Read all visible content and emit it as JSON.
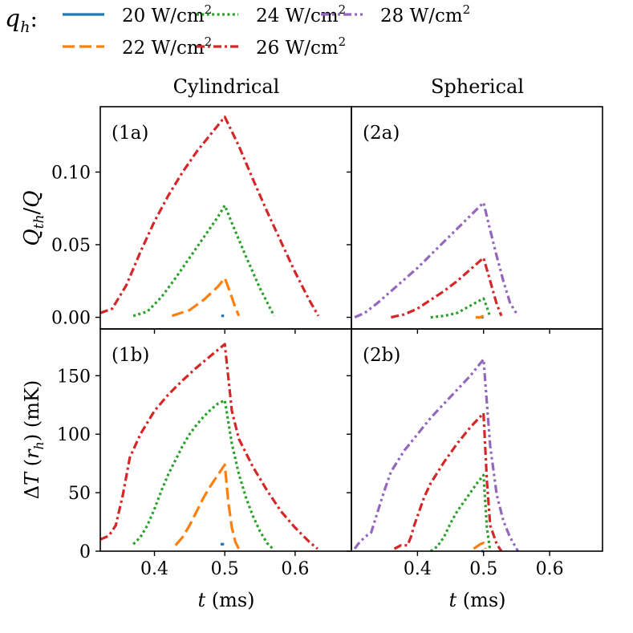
{
  "legend": {
    "prefix": "q_h:",
    "prefix_symbol": "q",
    "prefix_sub": "h",
    "unit_base": "W/cm",
    "unit_exp": "2",
    "entries": [
      {
        "key": "q20",
        "value": "20",
        "color": "#1f77b4",
        "style": "solid"
      },
      {
        "key": "q22",
        "value": "22",
        "color": "#ff7f0e",
        "style": "dashed"
      },
      {
        "key": "q24",
        "value": "24",
        "color": "#2ca02c",
        "style": "dotted"
      },
      {
        "key": "q26",
        "value": "26",
        "color": "#d62728",
        "style": "dashdot"
      },
      {
        "key": "q28",
        "value": "28",
        "color": "#9467bd",
        "style": "dashdotdot"
      }
    ]
  },
  "columns": {
    "left": "Cylindrical",
    "right": "Spherical"
  },
  "axes": {
    "xlabel": "t (ms)",
    "xlabel_symbol": "t",
    "xlabel_unit": "(ms)",
    "xticks": [
      "0.4",
      "0.5",
      "0.6"
    ],
    "top_ylabel": "Q_th/Q",
    "top_yticks": [
      "0.00",
      "0.05",
      "0.10"
    ],
    "bottom_ylabel": "ΔT(r_h) (mK)",
    "bottom_yticks": [
      "0",
      "50",
      "100",
      "150"
    ]
  },
  "chart_data": [
    {
      "id": "1a",
      "panel_label": "(1a)",
      "type": "line",
      "geometry": "Cylindrical",
      "xlim": [
        0.323,
        0.68
      ],
      "ylim": [
        -0.008,
        0.145
      ],
      "ylabel": "Q_th/Q",
      "xlabel": "t (ms)",
      "series": [
        {
          "name": "20 W/cm2",
          "key": "q20",
          "x": [
            0.495,
            0.499
          ],
          "y": [
            0.001,
            0.001
          ]
        },
        {
          "name": "22 W/cm2",
          "key": "q22",
          "x": [
            0.425,
            0.45,
            0.47,
            0.49,
            0.5,
            0.507,
            0.514,
            0.52
          ],
          "y": [
            0.001,
            0.005,
            0.012,
            0.021,
            0.027,
            0.018,
            0.008,
            0.001
          ]
        },
        {
          "name": "24 W/cm2",
          "key": "q24",
          "x": [
            0.37,
            0.39,
            0.41,
            0.43,
            0.45,
            0.47,
            0.49,
            0.5,
            0.51,
            0.53,
            0.55,
            0.57
          ],
          "y": [
            0.001,
            0.004,
            0.014,
            0.027,
            0.041,
            0.055,
            0.069,
            0.077,
            0.065,
            0.042,
            0.02,
            0.001
          ]
        },
        {
          "name": "26 W/cm2",
          "key": "q26",
          "x": [
            0.323,
            0.34,
            0.36,
            0.38,
            0.4,
            0.42,
            0.44,
            0.46,
            0.48,
            0.5,
            0.52,
            0.54,
            0.56,
            0.58,
            0.6,
            0.62,
            0.633
          ],
          "y": [
            0.003,
            0.006,
            0.022,
            0.045,
            0.066,
            0.084,
            0.1,
            0.114,
            0.126,
            0.138,
            0.118,
            0.095,
            0.073,
            0.052,
            0.031,
            0.012,
            0.001
          ]
        }
      ]
    },
    {
      "id": "2a",
      "panel_label": "(2a)",
      "type": "line",
      "geometry": "Spherical",
      "xlim": [
        0.3,
        0.68
      ],
      "ylim": [
        -0.008,
        0.145
      ],
      "ylabel": "Q_th/Q",
      "xlabel": "t (ms)",
      "series": [
        {
          "name": "20 W/cm2",
          "key": "q20",
          "x": [
            0.497,
            0.5
          ],
          "y": [
            0.0,
            0.0
          ]
        },
        {
          "name": "22 W/cm2",
          "key": "q22",
          "x": [
            0.488,
            0.495,
            0.5
          ],
          "y": [
            0.0,
            0.0,
            0.001
          ]
        },
        {
          "name": "24 W/cm2",
          "key": "q24",
          "x": [
            0.42,
            0.44,
            0.46,
            0.48,
            0.5,
            0.505,
            0.51
          ],
          "y": [
            0.0,
            0.001,
            0.003,
            0.008,
            0.013,
            0.007,
            0.0
          ]
        },
        {
          "name": "26 W/cm2",
          "key": "q26",
          "x": [
            0.36,
            0.38,
            0.4,
            0.42,
            0.44,
            0.46,
            0.48,
            0.5,
            0.51,
            0.52,
            0.527
          ],
          "y": [
            0.0,
            0.002,
            0.006,
            0.012,
            0.018,
            0.025,
            0.033,
            0.041,
            0.025,
            0.009,
            0.001
          ]
        },
        {
          "name": "28 W/cm2",
          "key": "q28",
          "x": [
            0.305,
            0.32,
            0.34,
            0.36,
            0.38,
            0.4,
            0.42,
            0.44,
            0.46,
            0.48,
            0.5,
            0.51,
            0.52,
            0.53,
            0.54,
            0.552
          ],
          "y": [
            0.0,
            0.003,
            0.01,
            0.018,
            0.026,
            0.034,
            0.043,
            0.052,
            0.061,
            0.07,
            0.079,
            0.06,
            0.042,
            0.025,
            0.01,
            0.001
          ]
        }
      ]
    },
    {
      "id": "1b",
      "panel_label": "(1b)",
      "type": "line",
      "geometry": "Cylindrical",
      "xlim": [
        0.323,
        0.68
      ],
      "ylim": [
        0,
        190
      ],
      "ylabel": "ΔT(r_h) (mK)",
      "xlabel": "t (ms)",
      "series": [
        {
          "name": "20 W/cm2",
          "key": "q20",
          "x": [
            0.494,
            0.499
          ],
          "y": [
            6,
            6
          ]
        },
        {
          "name": "22 W/cm2",
          "key": "q22",
          "x": [
            0.43,
            0.44,
            0.45,
            0.46,
            0.47,
            0.48,
            0.49,
            0.5,
            0.505,
            0.51,
            0.515,
            0.52
          ],
          "y": [
            5,
            12,
            22,
            34,
            46,
            56,
            65,
            74,
            42,
            20,
            8,
            2
          ]
        },
        {
          "name": "24 W/cm2",
          "key": "q24",
          "x": [
            0.37,
            0.38,
            0.39,
            0.4,
            0.41,
            0.42,
            0.43,
            0.44,
            0.45,
            0.46,
            0.47,
            0.48,
            0.49,
            0.5,
            0.51,
            0.52,
            0.53,
            0.54,
            0.55,
            0.56,
            0.57
          ],
          "y": [
            6,
            12,
            22,
            36,
            52,
            66,
            78,
            90,
            100,
            108,
            115,
            121,
            126,
            129,
            92,
            66,
            46,
            30,
            17,
            7,
            1
          ]
        },
        {
          "name": "26 W/cm2",
          "key": "q26",
          "x": [
            0.323,
            0.335,
            0.345,
            0.355,
            0.365,
            0.38,
            0.4,
            0.42,
            0.44,
            0.46,
            0.48,
            0.5,
            0.51,
            0.52,
            0.54,
            0.56,
            0.58,
            0.6,
            0.62,
            0.632
          ],
          "y": [
            10,
            13,
            22,
            48,
            80,
            100,
            120,
            134,
            146,
            157,
            167,
            177,
            120,
            96,
            72,
            52,
            34,
            20,
            8,
            2
          ]
        }
      ]
    },
    {
      "id": "2b",
      "panel_label": "(2b)",
      "type": "line",
      "geometry": "Spherical",
      "xlim": [
        0.3,
        0.68
      ],
      "ylim": [
        0,
        190
      ],
      "ylabel": "ΔT(r_h) (mK)",
      "xlabel": "t (ms)",
      "series": [
        {
          "name": "20 W/cm2",
          "key": "q20",
          "x": [
            0.497,
            0.5
          ],
          "y": [
            0,
            0
          ]
        },
        {
          "name": "22 W/cm2",
          "key": "q22",
          "x": [
            0.485,
            0.49,
            0.495,
            0.5,
            0.503
          ],
          "y": [
            2,
            4,
            6,
            7,
            2
          ]
        },
        {
          "name": "24 W/cm2",
          "key": "q24",
          "x": [
            0.42,
            0.43,
            0.44,
            0.45,
            0.46,
            0.47,
            0.48,
            0.49,
            0.5,
            0.505,
            0.51
          ],
          "y": [
            0,
            4,
            12,
            24,
            34,
            42,
            50,
            58,
            65,
            20,
            0
          ]
        },
        {
          "name": "26 W/cm2",
          "key": "q26",
          "x": [
            0.365,
            0.375,
            0.385,
            0.39,
            0.395,
            0.4,
            0.41,
            0.42,
            0.44,
            0.46,
            0.48,
            0.5,
            0.505,
            0.51,
            0.52,
            0.527
          ],
          "y": [
            2,
            5,
            5,
            12,
            22,
            30,
            46,
            58,
            76,
            92,
            106,
            118,
            60,
            22,
            6,
            0
          ]
        },
        {
          "name": "28 W/cm2",
          "key": "q28",
          "x": [
            0.305,
            0.31,
            0.32,
            0.33,
            0.34,
            0.35,
            0.36,
            0.38,
            0.4,
            0.42,
            0.44,
            0.46,
            0.48,
            0.5,
            0.51,
            0.52,
            0.53,
            0.54,
            0.552
          ],
          "y": [
            2,
            6,
            12,
            16,
            34,
            52,
            68,
            86,
            100,
            114,
            126,
            138,
            150,
            164,
            90,
            48,
            26,
            12,
            0
          ]
        }
      ]
    }
  ]
}
